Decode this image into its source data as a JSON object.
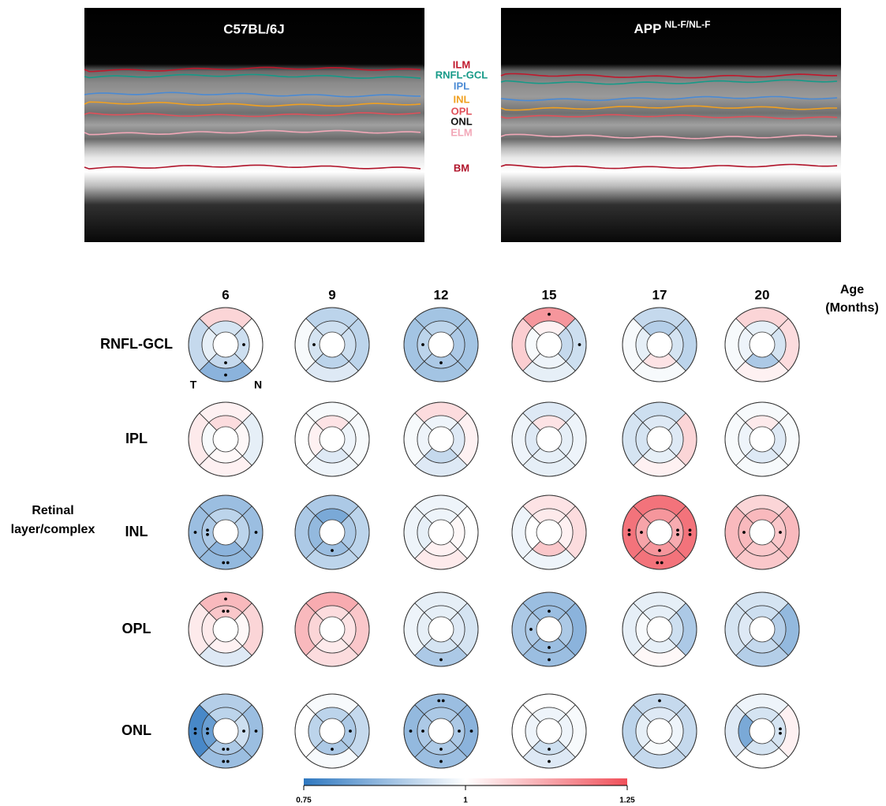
{
  "images": [
    {
      "title": "C57BL/6J"
    },
    {
      "title": "APP",
      "title_sup": "NL-F/NL-F"
    }
  ],
  "layers": [
    {
      "name": "ILM",
      "color": "#c0182c"
    },
    {
      "name": "RNFL-GCL",
      "color": "#169a88"
    },
    {
      "name": "IPL",
      "color": "#4a8ad4"
    },
    {
      "name": "INL",
      "color": "#f0a020"
    },
    {
      "name": "OPL",
      "color": "#e0505a"
    },
    {
      "name": "ONL",
      "color": "#111111"
    },
    {
      "name": "ELM",
      "color": "#f2a8b8"
    },
    {
      "name": "BM",
      "color": "#b0142a"
    }
  ],
  "heatmap": {
    "ages": [
      6,
      9,
      12,
      15,
      17,
      20
    ],
    "age_label": "Age",
    "age_unit": "(Months)",
    "row_label": [
      "Retinal",
      "layer/complex"
    ],
    "rows": [
      "RNFL-GCL",
      "IPL",
      "INL",
      "OPL",
      "ONL"
    ],
    "orientation": [
      "T",
      "N"
    ],
    "cells": [
      [
        {
          "outer": [
            1.06,
            1.0,
            0.86,
            0.93
          ],
          "inner": [
            0.95,
            0.94,
            0.93,
            0.97
          ],
          "dots_outer": [
            0,
            0,
            1,
            0
          ],
          "dots_inner": [
            0,
            1,
            1,
            0
          ]
        },
        {
          "outer": [
            0.92,
            0.92,
            0.96,
            0.99
          ],
          "inner": [
            0.94,
            0.94,
            0.92,
            0.95
          ],
          "dots_outer": [
            0,
            0,
            0,
            0
          ],
          "dots_inner": [
            0,
            0,
            0,
            1
          ]
        },
        {
          "outer": [
            0.89,
            0.89,
            0.89,
            0.89
          ],
          "inner": [
            0.92,
            0.9,
            0.9,
            0.92
          ],
          "dots_outer": [
            0,
            0,
            0,
            0
          ],
          "dots_inner": [
            0,
            0,
            1,
            1
          ]
        },
        {
          "outer": [
            1.15,
            0.94,
            0.97,
            1.07
          ],
          "inner": [
            1.02,
            0.93,
            0.98,
            0.99
          ],
          "dots_outer": [
            1,
            1,
            0,
            0
          ],
          "dots_inner": [
            0,
            0,
            0,
            0
          ]
        },
        {
          "outer": [
            0.93,
            0.92,
            0.99,
            0.99
          ],
          "inner": [
            0.91,
            0.95,
            1.04,
            0.97
          ],
          "dots_outer": [
            0,
            0,
            0,
            0
          ],
          "dots_inner": [
            0,
            0,
            0,
            0
          ]
        },
        {
          "outer": [
            1.06,
            1.05,
            1.02,
            0.99
          ],
          "inner": [
            0.97,
            0.95,
            0.9,
            0.98
          ],
          "dots_outer": [
            0,
            0,
            0,
            0
          ],
          "dots_inner": [
            0,
            0,
            0,
            0
          ]
        }
      ],
      [
        {
          "outer": [
            1.02,
            0.97,
            1.02,
            1.03
          ],
          "inner": [
            1.05,
            1.01,
            1.01,
            0.99
          ],
          "dots_outer": [
            0,
            0,
            0,
            0
          ],
          "dots_inner": [
            0,
            0,
            0,
            0
          ]
        },
        {
          "outer": [
            0.99,
            0.99,
            0.98,
            1.0
          ],
          "inner": [
            1.04,
            0.98,
            0.96,
            1.02
          ],
          "dots_outer": [
            0,
            0,
            0,
            0
          ],
          "dots_inner": [
            0,
            0,
            0,
            0
          ]
        },
        {
          "outer": [
            1.05,
            1.02,
            0.96,
            0.99
          ],
          "inner": [
            0.98,
            0.96,
            0.93,
            0.98
          ],
          "dots_outer": [
            0,
            0,
            0,
            0
          ],
          "dots_inner": [
            0,
            0,
            0,
            0
          ]
        },
        {
          "outer": [
            0.96,
            0.98,
            0.97,
            0.98
          ],
          "inner": [
            1.04,
            0.97,
            0.97,
            0.96
          ],
          "dots_outer": [
            0,
            0,
            0,
            0
          ],
          "dots_inner": [
            0,
            0,
            0,
            0
          ]
        },
        {
          "outer": [
            0.94,
            1.06,
            1.02,
            0.95
          ],
          "inner": [
            0.96,
            0.96,
            0.97,
            0.95
          ],
          "dots_outer": [
            0,
            0,
            0,
            0
          ],
          "dots_inner": [
            0,
            0,
            0,
            0
          ]
        },
        {
          "outer": [
            0.99,
            0.99,
            0.99,
            0.99
          ],
          "inner": [
            1.03,
            0.96,
            0.96,
            0.98
          ],
          "dots_outer": [
            0,
            0,
            0,
            0
          ],
          "dots_inner": [
            0,
            0,
            0,
            0
          ]
        }
      ],
      [
        {
          "outer": [
            0.88,
            0.88,
            0.87,
            0.88
          ],
          "inner": [
            0.92,
            0.92,
            0.86,
            0.9
          ],
          "dots_outer": [
            0,
            1,
            2,
            1
          ],
          "dots_inner": [
            0,
            0,
            0,
            2
          ]
        },
        {
          "outer": [
            0.9,
            0.92,
            0.92,
            0.9
          ],
          "inner": [
            0.84,
            0.9,
            0.88,
            0.87
          ],
          "dots_outer": [
            0,
            0,
            0,
            0
          ],
          "dots_inner": [
            0,
            0,
            1,
            0
          ]
        },
        {
          "outer": [
            0.98,
            1.0,
            1.03,
            0.98
          ],
          "inner": [
            0.98,
            1.01,
            1.02,
            0.97
          ],
          "dots_outer": [
            0,
            0,
            0,
            0
          ],
          "dots_inner": [
            0,
            0,
            0,
            0
          ]
        },
        {
          "outer": [
            1.04,
            1.05,
            0.98,
            0.98
          ],
          "inner": [
            1.03,
            1.02,
            1.08,
            1.0
          ],
          "dots_outer": [
            0,
            0,
            0,
            0
          ],
          "dots_inner": [
            0,
            0,
            0,
            0
          ]
        },
        {
          "outer": [
            1.2,
            1.2,
            1.2,
            1.2
          ],
          "inner": [
            1.15,
            1.12,
            1.15,
            1.13
          ],
          "dots_outer": [
            0,
            2,
            2,
            2
          ],
          "dots_inner": [
            0,
            2,
            1,
            1
          ]
        },
        {
          "outer": [
            1.06,
            1.1,
            1.08,
            1.1
          ],
          "inner": [
            1.1,
            1.08,
            1.08,
            1.1
          ],
          "dots_outer": [
            0,
            0,
            0,
            0
          ],
          "dots_inner": [
            0,
            1,
            0,
            1
          ]
        }
      ],
      [
        {
          "outer": [
            1.1,
            1.06,
            0.96,
            1.03
          ],
          "inner": [
            1.08,
            1.01,
            1.02,
            1.03
          ],
          "dots_outer": [
            1,
            0,
            0,
            0
          ],
          "dots_inner": [
            2,
            0,
            0,
            0
          ]
        },
        {
          "outer": [
            1.12,
            1.08,
            1.05,
            1.1
          ],
          "inner": [
            1.05,
            1.04,
            1.03,
            1.06
          ],
          "dots_outer": [
            0,
            0,
            0,
            0
          ],
          "dots_inner": [
            0,
            0,
            0,
            0
          ]
        },
        {
          "outer": [
            0.97,
            0.95,
            0.9,
            0.98
          ],
          "inner": [
            0.97,
            0.96,
            0.95,
            0.97
          ],
          "dots_outer": [
            0,
            0,
            1,
            0
          ],
          "dots_inner": [
            0,
            0,
            0,
            0
          ]
        },
        {
          "outer": [
            0.88,
            0.86,
            0.88,
            0.9
          ],
          "inner": [
            0.88,
            0.9,
            0.88,
            0.9
          ],
          "dots_outer": [
            0,
            0,
            1,
            0
          ],
          "dots_inner": [
            1,
            0,
            1,
            1
          ]
        },
        {
          "outer": [
            0.97,
            0.9,
            1.01,
            0.97
          ],
          "inner": [
            0.97,
            0.94,
            0.97,
            0.99
          ],
          "dots_outer": [
            0,
            0,
            0,
            0
          ],
          "dots_inner": [
            0,
            0,
            0,
            0
          ]
        },
        {
          "outer": [
            0.95,
            0.87,
            0.91,
            0.95
          ],
          "inner": [
            0.94,
            0.91,
            0.93,
            0.96
          ],
          "dots_outer": [
            0,
            0,
            0,
            0
          ],
          "dots_inner": [
            0,
            0,
            0,
            0
          ]
        }
      ],
      [
        {
          "outer": [
            0.91,
            0.88,
            0.88,
            0.78
          ],
          "inner": [
            0.92,
            0.94,
            0.9,
            0.82
          ],
          "dots_outer": [
            0,
            1,
            2,
            2
          ],
          "dots_inner": [
            0,
            1,
            2,
            2
          ]
        },
        {
          "outer": [
            0.99,
            0.93,
            0.99,
            1.0
          ],
          "inner": [
            0.92,
            0.9,
            0.9,
            0.92
          ],
          "dots_outer": [
            0,
            0,
            0,
            0
          ],
          "dots_inner": [
            0,
            1,
            1,
            0
          ]
        },
        {
          "outer": [
            0.88,
            0.86,
            0.88,
            0.87
          ],
          "inner": [
            0.9,
            0.9,
            0.9,
            0.9
          ],
          "dots_outer": [
            2,
            1,
            1,
            1
          ],
          "dots_inner": [
            0,
            1,
            1,
            1
          ]
        },
        {
          "outer": [
            1.0,
            0.99,
            0.96,
            1.0
          ],
          "inner": [
            0.98,
            0.98,
            0.94,
            0.98
          ],
          "dots_outer": [
            0,
            0,
            1,
            0
          ],
          "dots_inner": [
            0,
            0,
            1,
            0
          ]
        },
        {
          "outer": [
            0.93,
            0.93,
            0.93,
            0.92
          ],
          "inner": [
            0.96,
            0.98,
            0.99,
            0.97
          ],
          "dots_outer": [
            1,
            0,
            0,
            0
          ],
          "dots_inner": [
            0,
            0,
            0,
            0
          ]
        },
        {
          "outer": [
            0.98,
            1.02,
            1.0,
            0.96
          ],
          "inner": [
            0.95,
            0.95,
            0.95,
            0.84
          ],
          "dots_outer": [
            0,
            0,
            0,
            0
          ],
          "dots_inner": [
            0,
            2,
            0,
            0
          ]
        }
      ]
    ]
  },
  "colorbar": {
    "min": 0.75,
    "max": 1.25,
    "ticks": [
      0.75,
      1,
      1.25
    ],
    "colors": [
      "#2f78c0",
      "#ffffff",
      "#f0505a"
    ]
  }
}
